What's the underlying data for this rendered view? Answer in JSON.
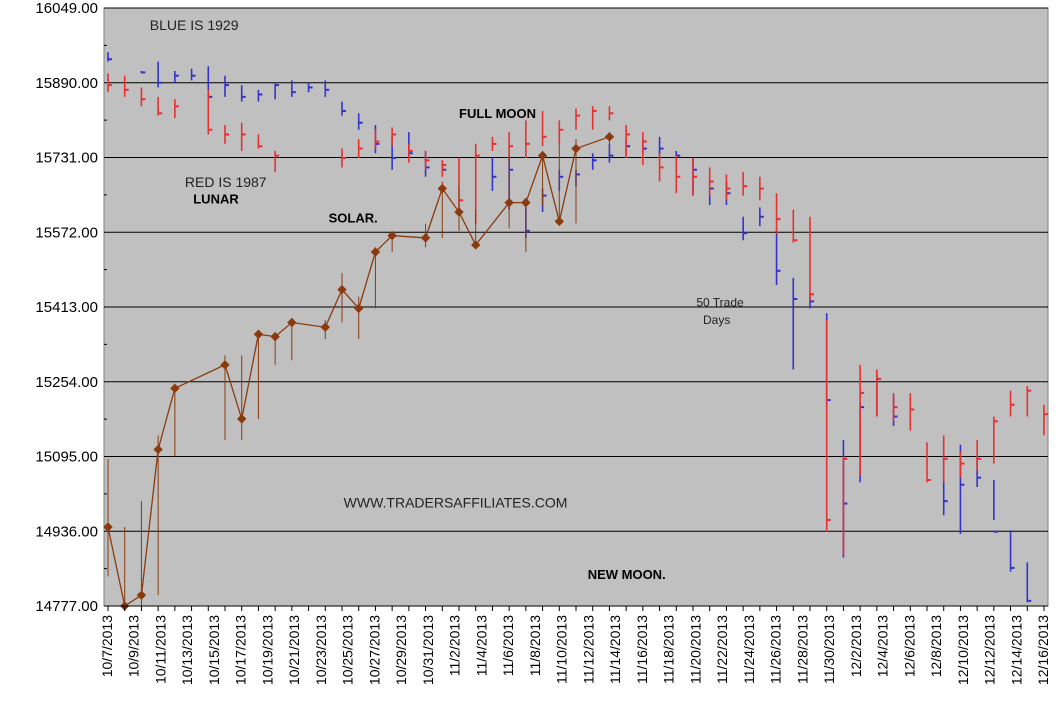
{
  "chart_data": {
    "type": "line",
    "ylim": [
      14777,
      16049
    ],
    "y_ticks": [
      "16049.00",
      "15890.00",
      "15731.00",
      "15572.00",
      "15413.00",
      "15254.00",
      "15095.00",
      "14936.00",
      "14777.00"
    ],
    "x_tick_labels": [
      "10/7/2013",
      "10/9/2013",
      "10/11/2013",
      "10/13/2013",
      "10/15/2013",
      "10/17/2013",
      "10/19/2013",
      "10/21/2013",
      "10/23/2013",
      "10/25/2013",
      "10/27/2013",
      "10/29/2013",
      "10/31/2013",
      "11/2/2013",
      "11/4/2013",
      "11/6/2013",
      "11/8/2013",
      "11/10/2013",
      "11/12/2013",
      "11/14/2013",
      "11/16/2013",
      "11/18/2013",
      "11/20/2013",
      "11/22/2013",
      "11/24/2013",
      "11/26/2013",
      "11/28/2013",
      "11/30/2013",
      "12/2/2013",
      "12/4/2013",
      "12/6/2013",
      "12/8/2013",
      "12/10/2013",
      "12/12/2013",
      "12/14/2013",
      "12/16/2013"
    ],
    "grid": true,
    "legend": "none",
    "colors": {
      "plot_bg": "#c0c0c0",
      "grid": "#000000",
      "blue_1929": "#3333cc",
      "red_1987": "#e83030",
      "line_2013": "#8b3a0e"
    },
    "series": [
      {
        "name": "BLUE IS 1929",
        "type": "hlc",
        "points": [
          {
            "x": 0,
            "h": 15955,
            "l": 15935,
            "c": 15940
          },
          {
            "x": 2,
            "h": 15915,
            "l": 15910,
            "c": 15912
          },
          {
            "x": 3,
            "h": 15935,
            "l": 15880,
            "c": 15890
          },
          {
            "x": 4,
            "h": 15915,
            "l": 15890,
            "c": 15905
          },
          {
            "x": 5,
            "h": 15920,
            "l": 15895,
            "c": 15905
          },
          {
            "x": 6,
            "h": 15925,
            "l": 15855,
            "c": 15860
          },
          {
            "x": 7,
            "h": 15905,
            "l": 15860,
            "c": 15885
          },
          {
            "x": 8,
            "h": 15885,
            "l": 15850,
            "c": 15860
          },
          {
            "x": 9,
            "h": 15875,
            "l": 15850,
            "c": 15865
          },
          {
            "x": 10,
            "h": 15890,
            "l": 15855,
            "c": 15885
          },
          {
            "x": 11,
            "h": 15895,
            "l": 15860,
            "c": 15870
          },
          {
            "x": 12,
            "h": 15890,
            "l": 15870,
            "c": 15880
          },
          {
            "x": 13,
            "h": 15895,
            "l": 15860,
            "c": 15875
          },
          {
            "x": 14,
            "h": 15850,
            "l": 15820,
            "c": 15830
          },
          {
            "x": 15,
            "h": 15825,
            "l": 15790,
            "c": 15805
          },
          {
            "x": 16,
            "h": 15800,
            "l": 15740,
            "c": 15760
          },
          {
            "x": 17,
            "h": 15775,
            "l": 15705,
            "c": 15730
          },
          {
            "x": 18,
            "h": 15785,
            "l": 15730,
            "c": 15740
          },
          {
            "x": 19,
            "h": 15745,
            "l": 15690,
            "c": 15710
          },
          {
            "x": 20,
            "h": 15725,
            "l": 15700,
            "c": 15705
          },
          {
            "x": 23,
            "h": 15730,
            "l": 15660,
            "c": 15690
          },
          {
            "x": 24,
            "h": 15730,
            "l": 15620,
            "c": 15705
          },
          {
            "x": 25,
            "h": 15625,
            "l": 15560,
            "c": 15575
          },
          {
            "x": 26,
            "h": 15665,
            "l": 15615,
            "c": 15650
          },
          {
            "x": 27,
            "h": 15705,
            "l": 15660,
            "c": 15690
          },
          {
            "x": 28,
            "h": 15705,
            "l": 15670,
            "c": 15695
          },
          {
            "x": 29,
            "h": 15740,
            "l": 15705,
            "c": 15725
          },
          {
            "x": 30,
            "h": 15760,
            "l": 15720,
            "c": 15735
          },
          {
            "x": 31,
            "h": 15770,
            "l": 15735,
            "c": 15755
          },
          {
            "x": 32,
            "h": 15770,
            "l": 15740,
            "c": 15750
          },
          {
            "x": 33,
            "h": 15775,
            "l": 15735,
            "c": 15750
          },
          {
            "x": 34,
            "h": 15745,
            "l": 15710,
            "c": 15735
          },
          {
            "x": 35,
            "h": 15730,
            "l": 15650,
            "c": 15705
          },
          {
            "x": 36,
            "h": 15690,
            "l": 15630,
            "c": 15665
          },
          {
            "x": 37,
            "h": 15680,
            "l": 15630,
            "c": 15655
          },
          {
            "x": 38,
            "h": 15605,
            "l": 15555,
            "c": 15570
          },
          {
            "x": 39,
            "h": 15625,
            "l": 15585,
            "c": 15605
          },
          {
            "x": 40,
            "h": 15580,
            "l": 15460,
            "c": 15490
          },
          {
            "x": 41,
            "h": 15475,
            "l": 15280,
            "c": 15430
          },
          {
            "x": 42,
            "h": 15440,
            "l": 15410,
            "c": 15425
          },
          {
            "x": 43,
            "h": 15400,
            "l": 15200,
            "c": 15215
          },
          {
            "x": 44,
            "h": 15130,
            "l": 14880,
            "c": 14995
          },
          {
            "x": 45,
            "h": 15210,
            "l": 15040,
            "c": 15200
          },
          {
            "x": 46,
            "h": 15270,
            "l": 15180,
            "c": 15260
          },
          {
            "x": 47,
            "h": 15225,
            "l": 15160,
            "c": 15180
          },
          {
            "x": 50,
            "h": 15130,
            "l": 14970,
            "c": 15000
          },
          {
            "x": 51,
            "h": 15120,
            "l": 14930,
            "c": 15035
          },
          {
            "x": 52,
            "h": 15095,
            "l": 15030,
            "c": 15050
          },
          {
            "x": 53,
            "h": 15045,
            "l": 14960,
            "c": 14935
          },
          {
            "x": 54,
            "h": 14938,
            "l": 14850,
            "c": 14858
          },
          {
            "x": 55,
            "h": 14870,
            "l": 14785,
            "c": 14788
          }
        ]
      },
      {
        "name": "RED IS 1987",
        "type": "hlc",
        "points": [
          {
            "x": 0,
            "h": 15910,
            "l": 15870,
            "c": 15885
          },
          {
            "x": 1,
            "h": 15905,
            "l": 15860,
            "c": 15875
          },
          {
            "x": 2,
            "h": 15880,
            "l": 15840,
            "c": 15855
          },
          {
            "x": 3,
            "h": 15860,
            "l": 15820,
            "c": 15825
          },
          {
            "x": 4,
            "h": 15855,
            "l": 15815,
            "c": 15840
          },
          {
            "x": 6,
            "h": 15875,
            "l": 15780,
            "c": 15790
          },
          {
            "x": 7,
            "h": 15800,
            "l": 15760,
            "c": 15780
          },
          {
            "x": 8,
            "h": 15805,
            "l": 15745,
            "c": 15780
          },
          {
            "x": 9,
            "h": 15780,
            "l": 15750,
            "c": 15755
          },
          {
            "x": 10,
            "h": 15745,
            "l": 15700,
            "c": 15735
          },
          {
            "x": 14,
            "h": 15750,
            "l": 15710,
            "c": 15730
          },
          {
            "x": 15,
            "h": 15770,
            "l": 15730,
            "c": 15750
          },
          {
            "x": 16,
            "h": 15790,
            "l": 15750,
            "c": 15765
          },
          {
            "x": 17,
            "h": 15795,
            "l": 15755,
            "c": 15780
          },
          {
            "x": 18,
            "h": 15760,
            "l": 15720,
            "c": 15745
          },
          {
            "x": 19,
            "h": 15745,
            "l": 15705,
            "c": 15725
          },
          {
            "x": 20,
            "h": 15725,
            "l": 15690,
            "c": 15715
          },
          {
            "x": 21,
            "h": 15730,
            "l": 15610,
            "c": 15640
          },
          {
            "x": 22,
            "h": 15760,
            "l": 15590,
            "c": 15735
          },
          {
            "x": 23,
            "h": 15775,
            "l": 15745,
            "c": 15760
          },
          {
            "x": 24,
            "h": 15785,
            "l": 15725,
            "c": 15755
          },
          {
            "x": 25,
            "h": 15810,
            "l": 15730,
            "c": 15760
          },
          {
            "x": 26,
            "h": 15830,
            "l": 15755,
            "c": 15775
          },
          {
            "x": 27,
            "h": 15810,
            "l": 15760,
            "c": 15790
          },
          {
            "x": 28,
            "h": 15835,
            "l": 15790,
            "c": 15820
          },
          {
            "x": 29,
            "h": 15840,
            "l": 15790,
            "c": 15830
          },
          {
            "x": 30,
            "h": 15840,
            "l": 15810,
            "c": 15825
          },
          {
            "x": 31,
            "h": 15800,
            "l": 15730,
            "c": 15780
          },
          {
            "x": 32,
            "h": 15785,
            "l": 15715,
            "c": 15765
          },
          {
            "x": 33,
            "h": 15740,
            "l": 15680,
            "c": 15710
          },
          {
            "x": 34,
            "h": 15735,
            "l": 15655,
            "c": 15690
          },
          {
            "x": 35,
            "h": 15730,
            "l": 15650,
            "c": 15690
          },
          {
            "x": 36,
            "h": 15710,
            "l": 15650,
            "c": 15680
          },
          {
            "x": 37,
            "h": 15695,
            "l": 15640,
            "c": 15665
          },
          {
            "x": 38,
            "h": 15700,
            "l": 15650,
            "c": 15670
          },
          {
            "x": 39,
            "h": 15690,
            "l": 15640,
            "c": 15665
          },
          {
            "x": 40,
            "h": 15655,
            "l": 15570,
            "c": 15600
          },
          {
            "x": 41,
            "h": 15620,
            "l": 15550,
            "c": 15555
          },
          {
            "x": 42,
            "h": 15605,
            "l": 15425,
            "c": 15440
          },
          {
            "x": 43,
            "h": 15385,
            "l": 14935,
            "c": 14960
          },
          {
            "x": 44,
            "h": 15095,
            "l": 14885,
            "c": 15090
          },
          {
            "x": 45,
            "h": 15290,
            "l": 15055,
            "c": 15230
          },
          {
            "x": 46,
            "h": 15280,
            "l": 15180,
            "c": 15260
          },
          {
            "x": 47,
            "h": 15230,
            "l": 15170,
            "c": 15200
          },
          {
            "x": 48,
            "h": 15230,
            "l": 15150,
            "c": 15195
          },
          {
            "x": 49,
            "h": 15125,
            "l": 15040,
            "c": 15045
          },
          {
            "x": 50,
            "h": 15140,
            "l": 15040,
            "c": 15090
          },
          {
            "x": 51,
            "h": 15105,
            "l": 15050,
            "c": 15080
          },
          {
            "x": 52,
            "h": 15130,
            "l": 15065,
            "c": 15090
          },
          {
            "x": 53,
            "h": 15180,
            "l": 15080,
            "c": 15170
          },
          {
            "x": 54,
            "h": 15235,
            "l": 15180,
            "c": 15205
          },
          {
            "x": 55,
            "h": 15245,
            "l": 15180,
            "c": 15235
          },
          {
            "x": 56,
            "h": 15205,
            "l": 15140,
            "c": 15185
          }
        ]
      },
      {
        "name": "",
        "type": "line_with_ranges",
        "points": [
          {
            "x": 0,
            "y": 14945,
            "h": 15090,
            "l": 14840
          },
          {
            "x": 1,
            "y": 14777,
            "h": 14945,
            "l": 14777
          },
          {
            "x": 2,
            "y": 14800,
            "h": 15000,
            "l": 14777
          },
          {
            "x": 3,
            "y": 15110,
            "h": 15140,
            "l": 14800
          },
          {
            "x": 4,
            "y": 15240,
            "h": 15250,
            "l": 15095
          },
          {
            "x": 7,
            "y": 15290,
            "h": 15310,
            "l": 15130
          },
          {
            "x": 8,
            "y": 15175,
            "h": 15310,
            "l": 15130
          },
          {
            "x": 9,
            "y": 15355,
            "h": 15360,
            "l": 15175
          },
          {
            "x": 10,
            "y": 15350,
            "h": 15360,
            "l": 15290
          },
          {
            "x": 11,
            "y": 15380,
            "h": 15385,
            "l": 15300
          },
          {
            "x": 13,
            "y": 15370,
            "h": 15385,
            "l": 15345
          },
          {
            "x": 14,
            "y": 15450,
            "h": 15485,
            "l": 15380
          },
          {
            "x": 15,
            "y": 15410,
            "h": 15435,
            "l": 15345
          },
          {
            "x": 16,
            "y": 15530,
            "h": 15540,
            "l": 15410
          },
          {
            "x": 17,
            "y": 15565,
            "h": 15570,
            "l": 15530
          },
          {
            "x": 19,
            "y": 15560,
            "h": 15590,
            "l": 15540
          },
          {
            "x": 20,
            "y": 15665,
            "h": 15680,
            "l": 15560
          },
          {
            "x": 21,
            "y": 15615,
            "h": 15670,
            "l": 15575
          },
          {
            "x": 22,
            "y": 15545,
            "h": 15620,
            "l": 15540
          },
          {
            "x": 24,
            "y": 15635,
            "h": 15735,
            "l": 15580
          },
          {
            "x": 25,
            "y": 15635,
            "h": 15645,
            "l": 15530
          },
          {
            "x": 26,
            "y": 15735,
            "h": 15745,
            "l": 15630
          },
          {
            "x": 27,
            "y": 15595,
            "h": 15760,
            "l": 15590
          },
          {
            "x": 28,
            "y": 15750,
            "h": 15770,
            "l": 15590
          },
          {
            "x": 30,
            "y": 15775,
            "h": 15785,
            "l": 15740
          }
        ]
      }
    ],
    "annotations": [
      {
        "text": "BLUE IS 1929",
        "style": "plain",
        "x": 2.5,
        "y": 16002
      },
      {
        "text": "RED IS 1987",
        "style": "plain",
        "x": 4.6,
        "y": 15668
      },
      {
        "text": "LUNAR",
        "style": "bold",
        "x": 5.1,
        "y": 15633
      },
      {
        "text": "SOLAR.",
        "style": "bold",
        "x": 13.2,
        "y": 15593
      },
      {
        "text": "FULL MOON",
        "style": "bold",
        "x": 21.0,
        "y": 15815
      },
      {
        "text": "WWW.TRADERSAFFILIATES.COM",
        "style": "plain",
        "x": 14.1,
        "y": 14986
      },
      {
        "text": "NEW MOON.",
        "style": "bold",
        "x": 28.7,
        "y": 14834
      },
      {
        "text": "50 Trade",
        "style": "small",
        "x": 35.2,
        "y": 15414
      },
      {
        "text": "Days",
        "style": "small",
        "x": 35.6,
        "y": 15377
      }
    ]
  }
}
